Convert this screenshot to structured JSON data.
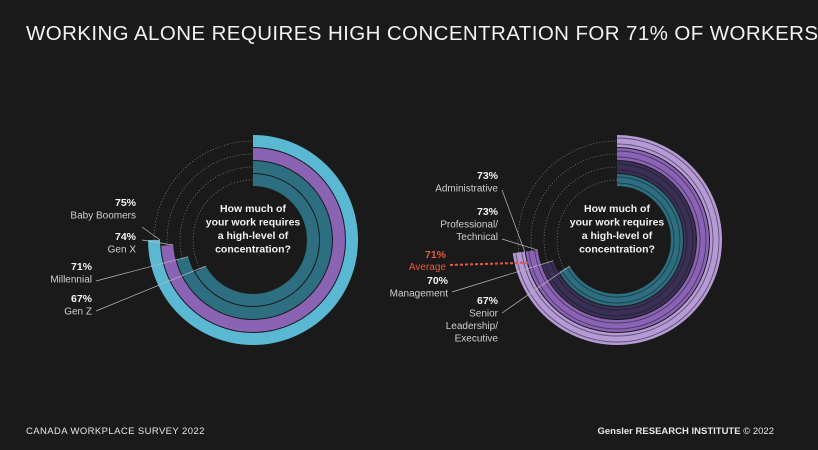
{
  "title": "WORKING ALONE REQUIRES HIGH CONCENTRATION FOR 71% OF WORKERS",
  "footer": {
    "source": "CANADA WORKPLACE SURVEY 2022",
    "brand": "Gensler",
    "institute": "RESEARCH INSTITUTE",
    "copyright": "© 2022"
  },
  "colors": {
    "cyan": "#5bb8d3",
    "purple": "#8b63b5",
    "teal": "#2d6e80",
    "lavender": "#b59ad6",
    "dark_purple": "#3a2f55",
    "average": "#e8573f"
  },
  "chart_data": [
    {
      "type": "radial-bar",
      "center_question": [
        "How much of",
        "your work requires",
        "a high-level of",
        "concentration?"
      ],
      "categories": [
        "Baby Boomers",
        "Gen X",
        "Millennial",
        "Gen Z"
      ],
      "values": [
        75,
        74,
        71,
        67
      ],
      "unit": "%"
    },
    {
      "type": "radial-bar",
      "center_question": [
        "How much of",
        "your work requires",
        "a high-level of",
        "concentration?"
      ],
      "categories": [
        [
          "Administrative"
        ],
        [
          "Professional/",
          "Technical"
        ],
        [
          "Management"
        ],
        [
          "Senior",
          "Leadership/",
          "Executive"
        ]
      ],
      "values": [
        73,
        73,
        70,
        67
      ],
      "unit": "%",
      "average": {
        "label": "Average",
        "value": 71
      }
    }
  ]
}
